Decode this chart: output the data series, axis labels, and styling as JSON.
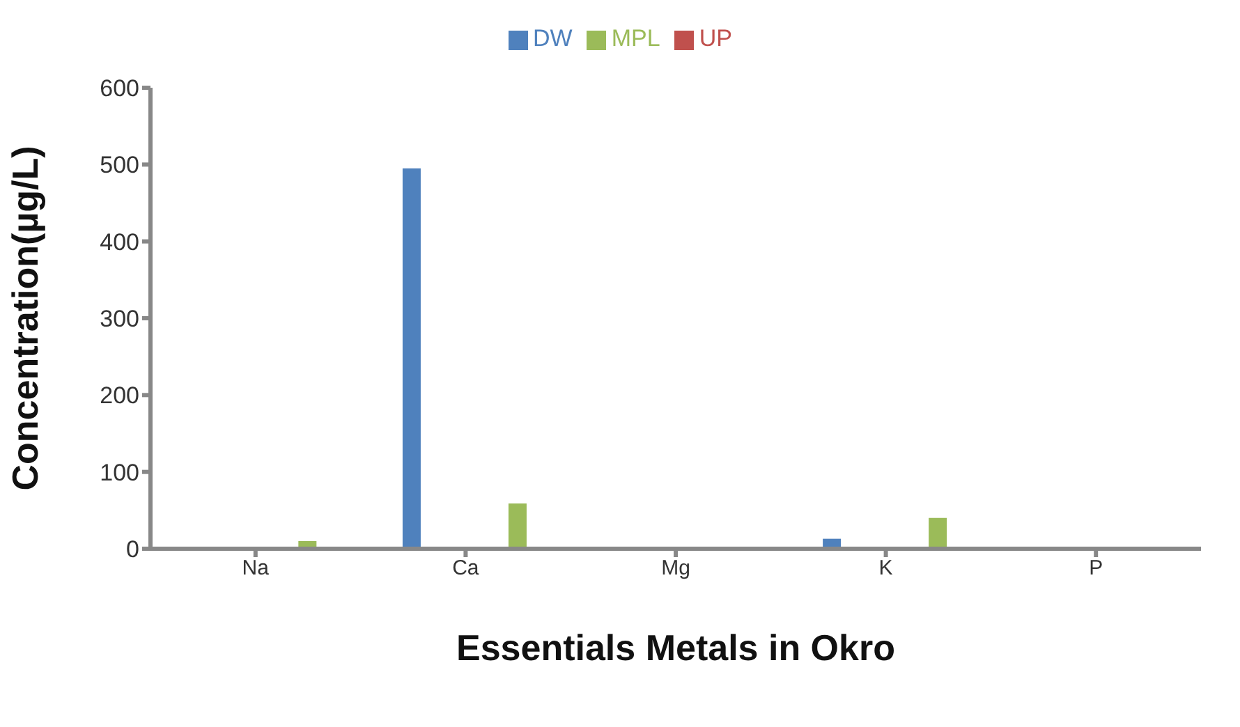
{
  "chart_data": {
    "type": "bar",
    "categories": [
      "Na",
      "Ca",
      "Mg",
      "K",
      "P"
    ],
    "series": [
      {
        "name": "DW",
        "color": "#4f81bd",
        "values": [
          0,
          495,
          0,
          13,
          0
        ]
      },
      {
        "name": "UP",
        "color": "#c0504d",
        "values": [
          0,
          0,
          0,
          0,
          0
        ]
      },
      {
        "name": "MPL",
        "color": "#9bbb59",
        "values": [
          10,
          59,
          0,
          40,
          0
        ]
      }
    ],
    "xlabel": "Essentials Metals in Okro",
    "ylabel": "Concentration(µg/L)",
    "ylim": [
      0,
      600
    ],
    "yticks": [
      0,
      100,
      200,
      300,
      400,
      500,
      600
    ],
    "grid": false,
    "legend": "top"
  }
}
